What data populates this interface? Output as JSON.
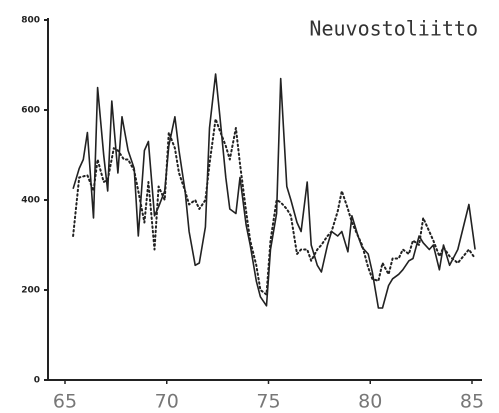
{
  "chart_data": {
    "type": "line",
    "title": "Neuvostoliitto",
    "xlim": [
      65,
      85
    ],
    "xticks": [
      65,
      70,
      75,
      80,
      85
    ],
    "ylim": [
      0,
      800
    ],
    "yticks": [
      0,
      200,
      400,
      600,
      800
    ],
    "grid": false,
    "series": [
      {
        "color": "#222222",
        "style": "solid",
        "x": [
          65.4,
          65.7,
          65.9,
          66.1,
          66.4,
          66.6,
          66.9,
          67.1,
          67.3,
          67.6,
          67.8,
          68.1,
          68.4,
          68.6,
          68.9,
          69.1,
          69.4,
          69.6,
          69.9,
          70.1,
          70.4,
          70.6,
          70.9,
          71.1,
          71.4,
          71.6,
          71.9,
          72.1,
          72.4,
          72.6,
          72.9,
          73.1,
          73.4,
          73.6,
          73.9,
          74.1,
          74.4,
          74.6,
          74.9,
          75.1,
          75.4,
          75.6,
          75.9,
          76.1,
          76.4,
          76.6,
          76.9,
          77.1,
          77.4,
          77.6,
          77.9,
          78.1,
          78.4,
          78.6,
          78.9,
          79.1,
          79.4,
          79.6,
          79.9,
          80.1,
          80.4,
          80.6,
          80.9,
          81.1,
          81.4,
          81.6,
          81.9,
          82.1,
          82.4,
          82.6,
          82.9,
          83.1,
          83.4,
          83.6,
          83.9,
          84.3,
          84.85,
          85.15
        ],
        "values": [
          425,
          470,
          490,
          550,
          360,
          650,
          500,
          420,
          620,
          460,
          585,
          510,
          470,
          320,
          510,
          530,
          365,
          385,
          420,
          520,
          585,
          510,
          420,
          330,
          255,
          260,
          340,
          560,
          680,
          590,
          450,
          380,
          370,
          450,
          345,
          300,
          220,
          185,
          165,
          290,
          370,
          670,
          430,
          400,
          350,
          330,
          440,
          300,
          255,
          240,
          300,
          330,
          320,
          330,
          285,
          365,
          320,
          295,
          280,
          240,
          160,
          160,
          210,
          225,
          235,
          245,
          265,
          270,
          320,
          305,
          290,
          300,
          245,
          300,
          255,
          290,
          390,
          290
        ]
      },
      {
        "color": "#222222",
        "style": "dotted",
        "x": [
          65.4,
          65.7,
          66.1,
          66.4,
          66.6,
          66.9,
          67.1,
          67.4,
          67.6,
          67.9,
          68.1,
          68.4,
          68.6,
          68.9,
          69.1,
          69.4,
          69.6,
          69.9,
          70.1,
          70.4,
          70.6,
          70.9,
          71.1,
          71.4,
          71.6,
          71.9,
          72.1,
          72.4,
          72.6,
          72.9,
          73.1,
          73.4,
          73.6,
          73.9,
          74.1,
          74.4,
          74.6,
          74.9,
          75.1,
          75.4,
          75.6,
          75.9,
          76.1,
          76.4,
          76.6,
          76.9,
          77.1,
          77.4,
          77.6,
          77.9,
          78.1,
          78.4,
          78.6,
          78.9,
          79.1,
          79.4,
          79.6,
          79.9,
          80.1,
          80.4,
          80.6,
          80.9,
          81.1,
          81.4,
          81.6,
          81.9,
          82.1,
          82.4,
          82.6,
          82.9,
          83.1,
          83.4,
          83.6,
          83.9,
          84.3,
          84.85,
          85.15
        ],
        "values": [
          320,
          450,
          455,
          420,
          490,
          440,
          445,
          515,
          510,
          490,
          490,
          465,
          420,
          350,
          440,
          290,
          430,
          400,
          550,
          515,
          460,
          420,
          390,
          400,
          380,
          400,
          480,
          580,
          555,
          520,
          490,
          560,
          480,
          375,
          310,
          255,
          200,
          190,
          310,
          400,
          395,
          380,
          365,
          280,
          290,
          290,
          265,
          290,
          300,
          320,
          330,
          375,
          420,
          380,
          350,
          320,
          300,
          250,
          225,
          220,
          260,
          235,
          270,
          270,
          290,
          280,
          310,
          300,
          360,
          330,
          310,
          275,
          295,
          275,
          260,
          290,
          270
        ]
      }
    ]
  }
}
